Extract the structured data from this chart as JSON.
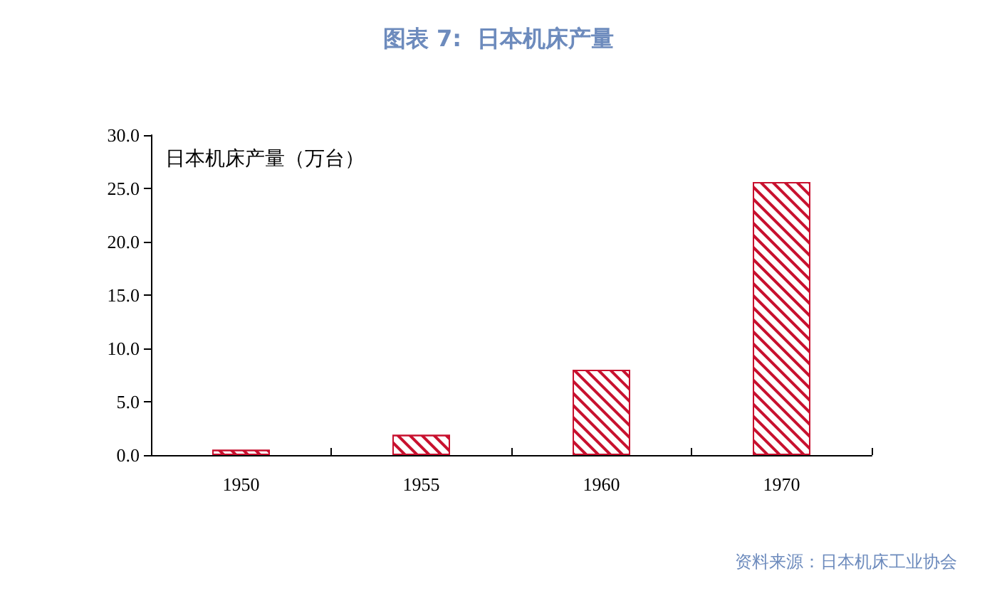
{
  "chart_data": {
    "type": "bar",
    "title": "图表 7:  日本机床产量",
    "ylabel": "日本机床产量（万台）",
    "categories": [
      "1950",
      "1955",
      "1960",
      "1970"
    ],
    "values": [
      0.5,
      1.9,
      8.0,
      25.6
    ],
    "color": "#c8102e",
    "ylim": [
      0,
      30
    ],
    "yticks": [
      {
        "value": 0,
        "label": "0.0"
      },
      {
        "value": 5,
        "label": "5.0"
      },
      {
        "value": 10,
        "label": "10.0"
      },
      {
        "value": 15,
        "label": "15.0"
      },
      {
        "value": 20,
        "label": "20.0"
      },
      {
        "value": 25,
        "label": "25.0"
      },
      {
        "value": 30,
        "label": "30.0"
      }
    ],
    "grid": false,
    "annotations": [
      "资料来源：日本机床工业协会"
    ]
  }
}
